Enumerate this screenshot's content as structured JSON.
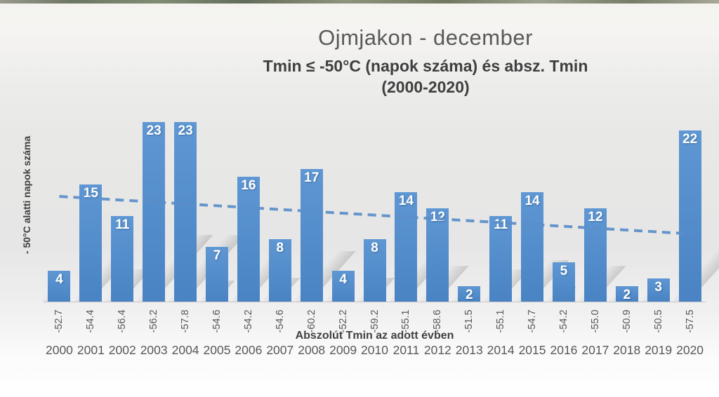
{
  "header": {
    "title": "Ojmjakon - december",
    "subtitle_line1": "Tmin ≤ -50°C (napok száma) és absz. Tmin",
    "subtitle_line2": "(2000-2020)"
  },
  "chart_data": {
    "type": "bar",
    "title": "Ojmjakon - december",
    "subtitle": "Tmin ≤ -50°C (napok száma) és absz. Tmin (2000-2020)",
    "ylabel": "- 50°C alatti napok száma",
    "xlabel": "Abszolút Tmin az adott évben",
    "categories": [
      "2000",
      "2001",
      "2002",
      "2003",
      "2004",
      "2005",
      "2006",
      "2007",
      "2008",
      "2009",
      "2010",
      "2011",
      "2012",
      "2013",
      "2014",
      "2015",
      "2016",
      "2017",
      "2018",
      "2019",
      "2020"
    ],
    "series": [
      {
        "name": "Tmin ≤ -50°C napok száma",
        "values": [
          4,
          15,
          11,
          23,
          23,
          7,
          16,
          8,
          17,
          4,
          8,
          14,
          12,
          2,
          11,
          14,
          5,
          12,
          2,
          3,
          22
        ]
      },
      {
        "name": "Abszolút Tmin az adott évben (°C)",
        "values": [
          -52.7,
          -54.4,
          -56.4,
          -56.2,
          -57.8,
          -54.6,
          -54.2,
          -54.6,
          -60.2,
          -52.2,
          -59.2,
          -55.1,
          -58.6,
          -51.5,
          -55.1,
          -54.7,
          -54.2,
          -55.0,
          -50.9,
          -50.5,
          -57.5
        ]
      }
    ],
    "x_tick_labels": [
      "-52.7",
      "-54.4",
      "-56.4",
      "-56.2",
      "-57.8",
      "-54.6",
      "-54.2",
      "-54.6",
      "-60.2",
      "-52.2",
      "-59.2",
      "-55.1",
      "-58.6",
      "-51.5",
      "-55.1",
      "-54.7",
      "-54.2",
      "-55.0",
      "-50.9",
      "-50.5",
      "-57.5"
    ],
    "ylim": [
      0,
      24.3
    ],
    "grid": false,
    "legend": false,
    "bar_color": "#4a83c3",
    "bar_color_light": "#5e97d3",
    "label_color": "#ffffff",
    "trendline": {
      "type": "linear",
      "style": "dashed",
      "color": "#5b8fc9",
      "start_value": 13.5,
      "end_value": 8.7
    }
  }
}
